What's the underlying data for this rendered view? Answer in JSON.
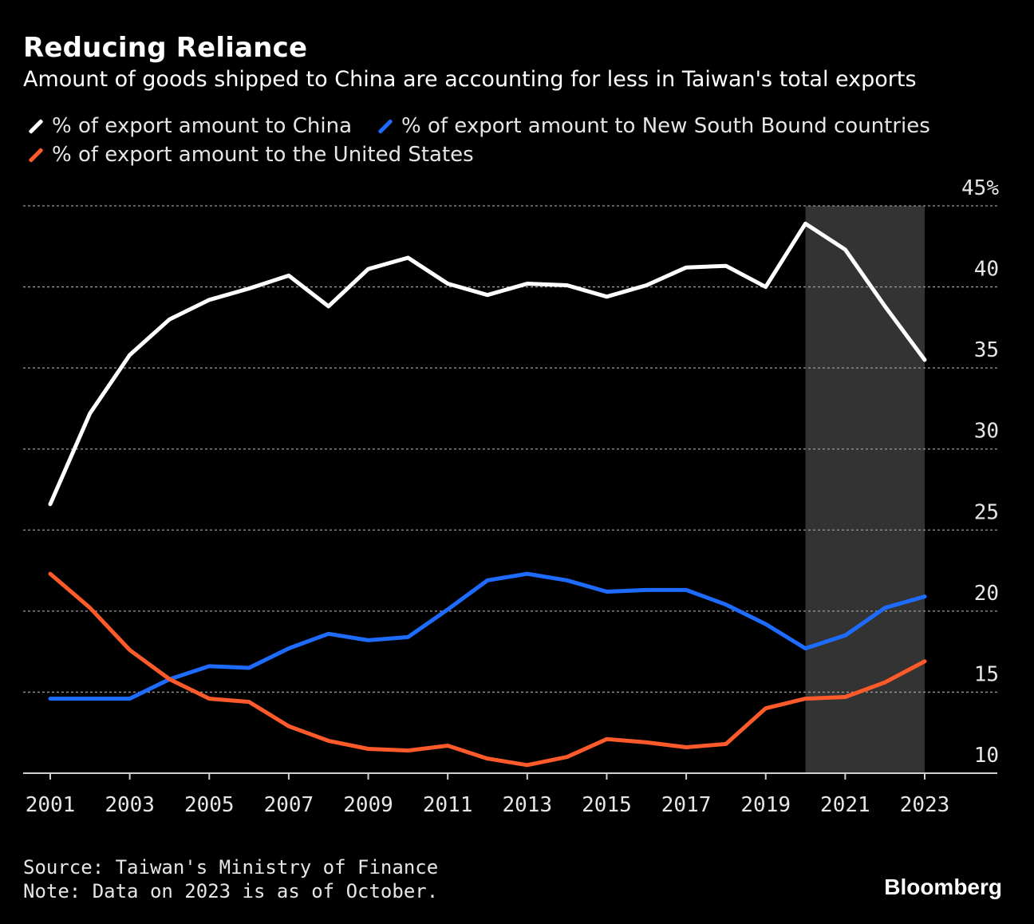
{
  "header": {
    "title": "Reducing Reliance",
    "subtitle": "Amount of goods shipped to China are accounting for less in Taiwan's total exports"
  },
  "legend": {
    "items": [
      {
        "label": "% of export amount to China",
        "color": "#ffffff"
      },
      {
        "label": "% of export amount to New South Bound countries",
        "color": "#1e6cff"
      },
      {
        "label": "% of export amount to the United States",
        "color": "#ff5a2a"
      }
    ]
  },
  "chart_data": {
    "type": "line",
    "title": "Reducing Reliance",
    "subtitle": "Amount of goods shipped to China are accounting for less in Taiwan's total exports",
    "xlabel": "",
    "ylabel": "",
    "x": [
      2001,
      2002,
      2003,
      2004,
      2005,
      2006,
      2007,
      2008,
      2009,
      2010,
      2011,
      2012,
      2013,
      2014,
      2015,
      2016,
      2017,
      2018,
      2019,
      2020,
      2021,
      2022,
      2023
    ],
    "xticks": [
      "2001",
      "2003",
      "2005",
      "2007",
      "2009",
      "2011",
      "2013",
      "2015",
      "2017",
      "2019",
      "2021",
      "2023"
    ],
    "yticks": [
      "10",
      "15",
      "20",
      "25",
      "30",
      "35",
      "40",
      "45%"
    ],
    "ytick_values": [
      10,
      15,
      20,
      25,
      30,
      35,
      40,
      45
    ],
    "ylim": [
      10,
      45
    ],
    "grid": true,
    "y_axis_side": "right",
    "shaded_region": {
      "from": 2020,
      "to": 2023,
      "color": "#333333"
    },
    "series": [
      {
        "name": "% of export amount to China",
        "color": "#ffffff",
        "values": [
          26.6,
          32.2,
          35.8,
          38.0,
          39.2,
          39.9,
          40.7,
          38.8,
          41.1,
          41.8,
          40.2,
          39.5,
          40.2,
          40.1,
          39.4,
          40.1,
          41.2,
          41.3,
          40.0,
          43.9,
          42.3,
          38.8,
          35.5
        ]
      },
      {
        "name": "% of export amount to New South Bound countries",
        "color": "#1e6cff",
        "values": [
          14.6,
          14.6,
          14.6,
          15.8,
          16.6,
          16.5,
          17.7,
          18.6,
          18.2,
          18.4,
          20.1,
          21.9,
          22.3,
          21.9,
          21.2,
          21.3,
          21.3,
          20.4,
          19.2,
          17.7,
          18.5,
          20.2,
          20.9
        ]
      },
      {
        "name": "% of export amount to the United States",
        "color": "#ff5a2a",
        "values": [
          22.3,
          20.2,
          17.6,
          15.8,
          14.6,
          14.4,
          12.9,
          12.0,
          11.5,
          11.4,
          11.7,
          10.9,
          10.5,
          11.0,
          12.1,
          11.9,
          11.6,
          11.8,
          14.0,
          14.6,
          14.7,
          15.6,
          16.9
        ]
      }
    ]
  },
  "footer": {
    "source": "Source: Taiwan's Ministry of Finance",
    "note": "Note: Data on 2023 is as of October.",
    "brand": "Bloomberg"
  }
}
